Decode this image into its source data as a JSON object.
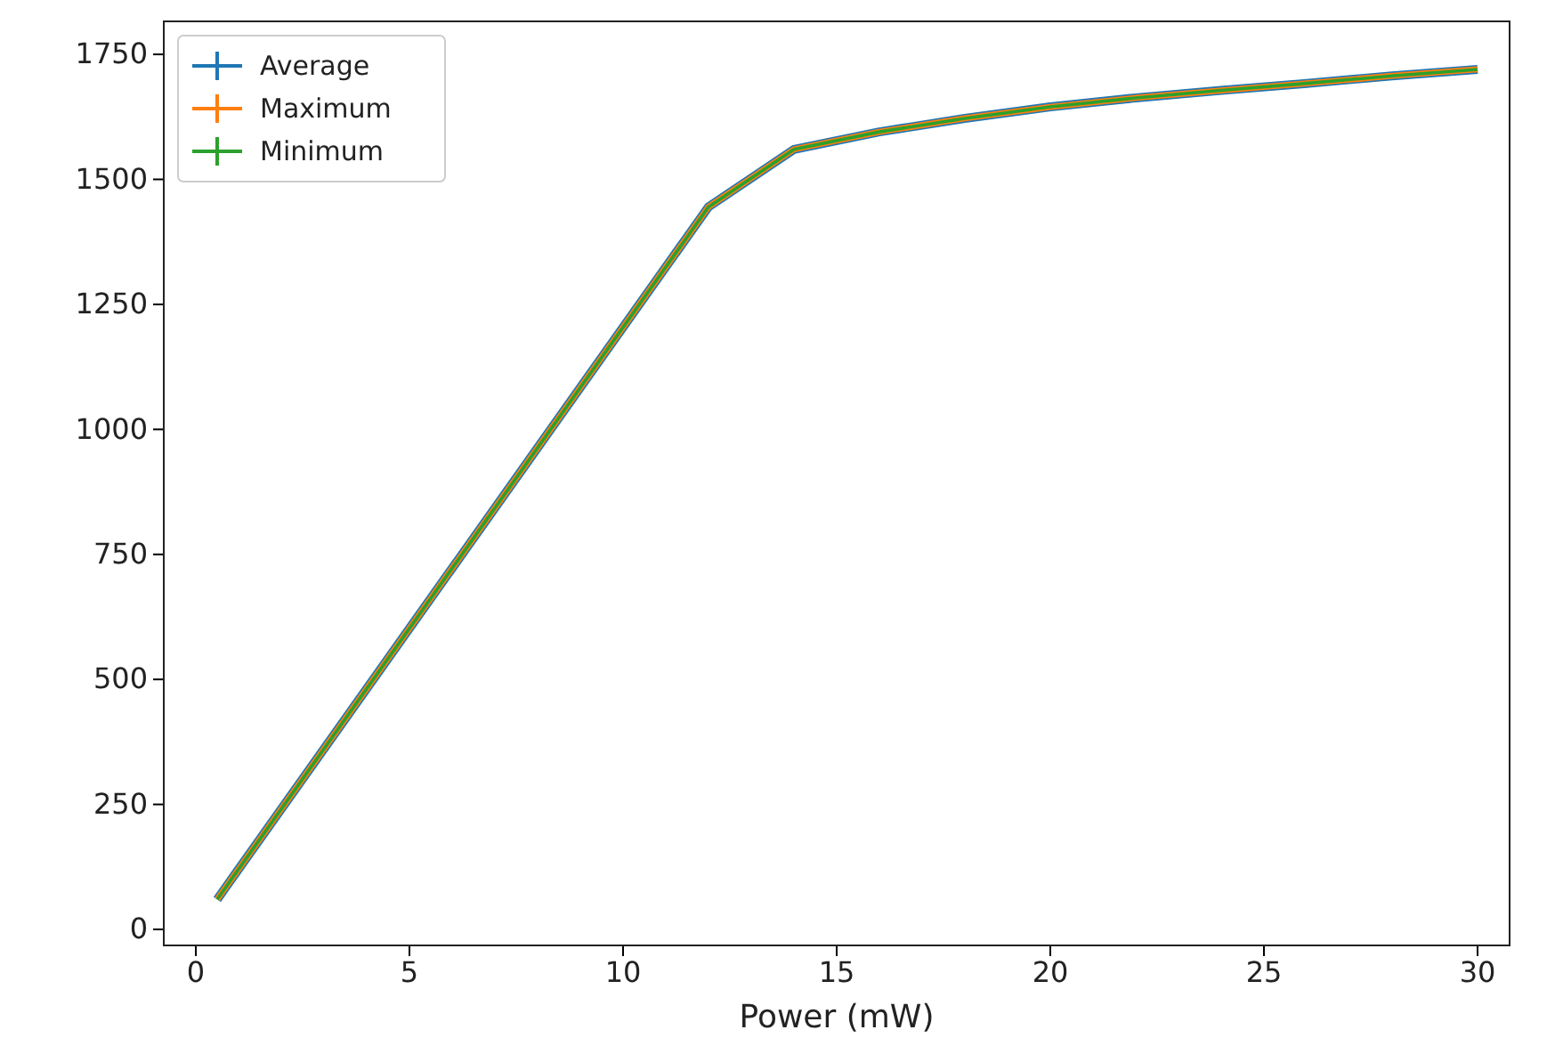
{
  "chart_data": {
    "type": "line",
    "xlabel": "Power (mW)",
    "x": [
      0.5,
      12,
      14,
      16,
      18,
      20,
      22,
      24,
      26,
      28,
      30
    ],
    "series": [
      {
        "name": "Average",
        "color": "#1f77b4",
        "values": [
          60,
          1445,
          1560,
          1595,
          1622,
          1645,
          1663,
          1678,
          1692,
          1707,
          1720
        ]
      },
      {
        "name": "Maximum",
        "color": "#ff7f0e",
        "values": [
          60,
          1445,
          1560,
          1595,
          1622,
          1645,
          1663,
          1678,
          1692,
          1707,
          1720
        ]
      },
      {
        "name": "Minimum",
        "color": "#2ca02c",
        "values": [
          60,
          1445,
          1560,
          1595,
          1622,
          1645,
          1663,
          1678,
          1692,
          1707,
          1720
        ]
      }
    ],
    "xlim": [
      -0.75,
      30.75
    ],
    "ylim": [
      -32,
      1816
    ],
    "xticks": [
      0,
      5,
      10,
      15,
      20,
      25,
      30
    ],
    "yticks": [
      0,
      250,
      500,
      750,
      1000,
      1250,
      1500,
      1750
    ],
    "legend": "top left",
    "grid": false,
    "line_style": "solid"
  }
}
